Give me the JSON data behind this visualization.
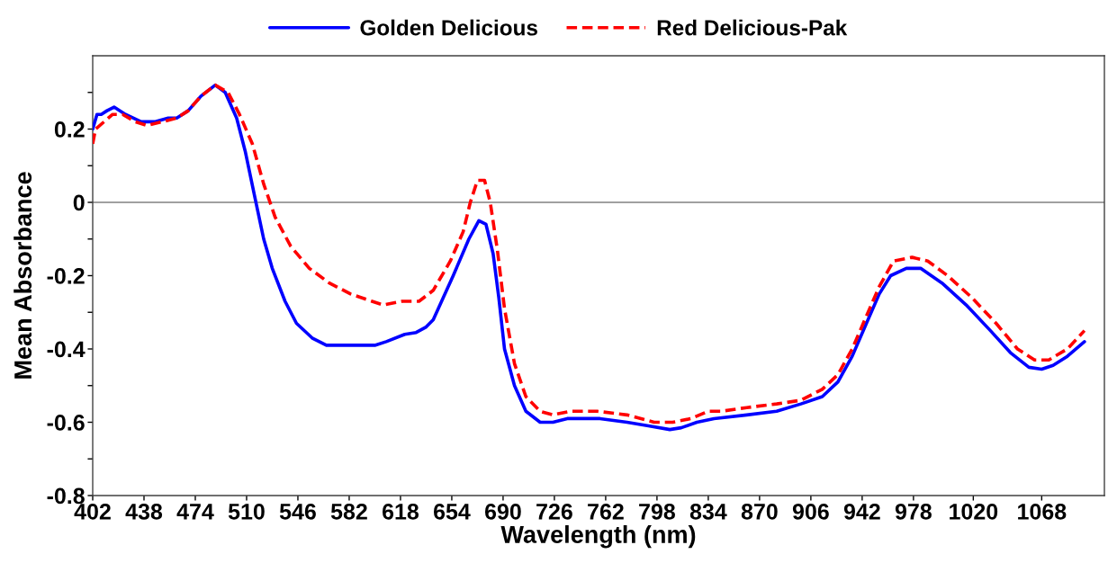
{
  "chart_data": {
    "type": "line",
    "xlabel": "Wavelength (nm)",
    "ylabel": "Mean Absorbance",
    "legend": "top",
    "xlim": [
      402,
      1112
    ],
    "ylim": [
      -0.8,
      0.4
    ],
    "xticks": [
      402,
      438,
      474,
      510,
      546,
      582,
      618,
      654,
      690,
      726,
      762,
      798,
      834,
      870,
      906,
      942,
      978,
      1020,
      1068
    ],
    "yticks": [
      -0.8,
      {
        "value": -0.7,
        "label": null
      },
      -0.6,
      {
        "value": -0.5,
        "label": null
      },
      -0.4,
      {
        "value": -0.3,
        "label": null
      },
      -0.2,
      {
        "value": -0.1,
        "label": null
      },
      0,
      {
        "value": 0.1,
        "label": null
      },
      0.2,
      {
        "value": 0.3,
        "label": null
      }
    ],
    "ref_lines": [
      {
        "axis": "y",
        "value": 0,
        "color": "#808080"
      }
    ],
    "series": [
      {
        "name": "Golden Delicious",
        "color": "#0000ff",
        "line_style": "solid",
        "x": [
          402,
          405,
          408,
          412,
          417,
          425,
          436,
          446,
          455,
          461,
          469,
          478,
          488,
          495,
          503,
          509,
          516,
          522,
          528,
          537,
          545,
          556,
          566,
          577,
          587,
          600,
          608,
          621,
          629,
          636,
          641,
          655,
          666,
          673,
          678,
          683,
          687,
          691,
          698,
          706,
          716,
          725,
          735,
          746,
          758,
          777,
          792,
          807,
          815,
          826,
          838,
          861,
          882,
          899,
          914,
          925,
          935,
          945,
          954,
          962,
          973,
          983,
          998,
          1015,
          1032,
          1046,
          1059,
          1068,
          1076,
          1086,
          1098
        ],
        "values": [
          0.2,
          0.24,
          0.24,
          0.25,
          0.26,
          0.24,
          0.22,
          0.22,
          0.23,
          0.23,
          0.25,
          0.29,
          0.32,
          0.3,
          0.23,
          0.14,
          0.01,
          -0.1,
          -0.18,
          -0.27,
          -0.33,
          -0.37,
          -0.39,
          -0.39,
          -0.39,
          -0.39,
          -0.38,
          -0.36,
          -0.355,
          -0.34,
          -0.32,
          -0.2,
          -0.1,
          -0.05,
          -0.06,
          -0.14,
          -0.26,
          -0.4,
          -0.5,
          -0.57,
          -0.6,
          -0.6,
          -0.59,
          -0.59,
          -0.59,
          -0.6,
          -0.61,
          -0.62,
          -0.615,
          -0.6,
          -0.59,
          -0.58,
          -0.57,
          -0.55,
          -0.53,
          -0.49,
          -0.42,
          -0.33,
          -0.25,
          -0.2,
          -0.18,
          -0.18,
          -0.22,
          -0.28,
          -0.35,
          -0.41,
          -0.45,
          -0.455,
          -0.445,
          -0.42,
          -0.38
        ]
      },
      {
        "name": "Red Delicious-Pak",
        "color": "#ff0000",
        "line_style": "dashed",
        "x": [
          402,
          404,
          410,
          416,
          423,
          432,
          440,
          451,
          461,
          469,
          478,
          488,
          497,
          505,
          514,
          522,
          530,
          541,
          554,
          568,
          583,
          598,
          606,
          619,
          631,
          641,
          653,
          662,
          667,
          672,
          677,
          681,
          686,
          691,
          698,
          706,
          716,
          725,
          737,
          756,
          777,
          796,
          809,
          822,
          834,
          843,
          861,
          882,
          899,
          914,
          925,
          935,
          945,
          954,
          964,
          977,
          988,
          1002,
          1019,
          1036,
          1051,
          1063,
          1073,
          1086,
          1098
        ],
        "values": [
          0.16,
          0.2,
          0.22,
          0.24,
          0.24,
          0.22,
          0.21,
          0.22,
          0.23,
          0.25,
          0.29,
          0.32,
          0.3,
          0.24,
          0.16,
          0.05,
          -0.04,
          -0.12,
          -0.18,
          -0.22,
          -0.25,
          -0.27,
          -0.28,
          -0.27,
          -0.27,
          -0.24,
          -0.16,
          -0.08,
          0.0,
          0.06,
          0.06,
          0.0,
          -0.13,
          -0.29,
          -0.44,
          -0.53,
          -0.57,
          -0.58,
          -0.57,
          -0.57,
          -0.58,
          -0.6,
          -0.6,
          -0.59,
          -0.57,
          -0.57,
          -0.56,
          -0.55,
          -0.54,
          -0.51,
          -0.47,
          -0.4,
          -0.31,
          -0.23,
          -0.16,
          -0.15,
          -0.16,
          -0.2,
          -0.26,
          -0.33,
          -0.4,
          -0.43,
          -0.43,
          -0.4,
          -0.35
        ]
      }
    ]
  }
}
